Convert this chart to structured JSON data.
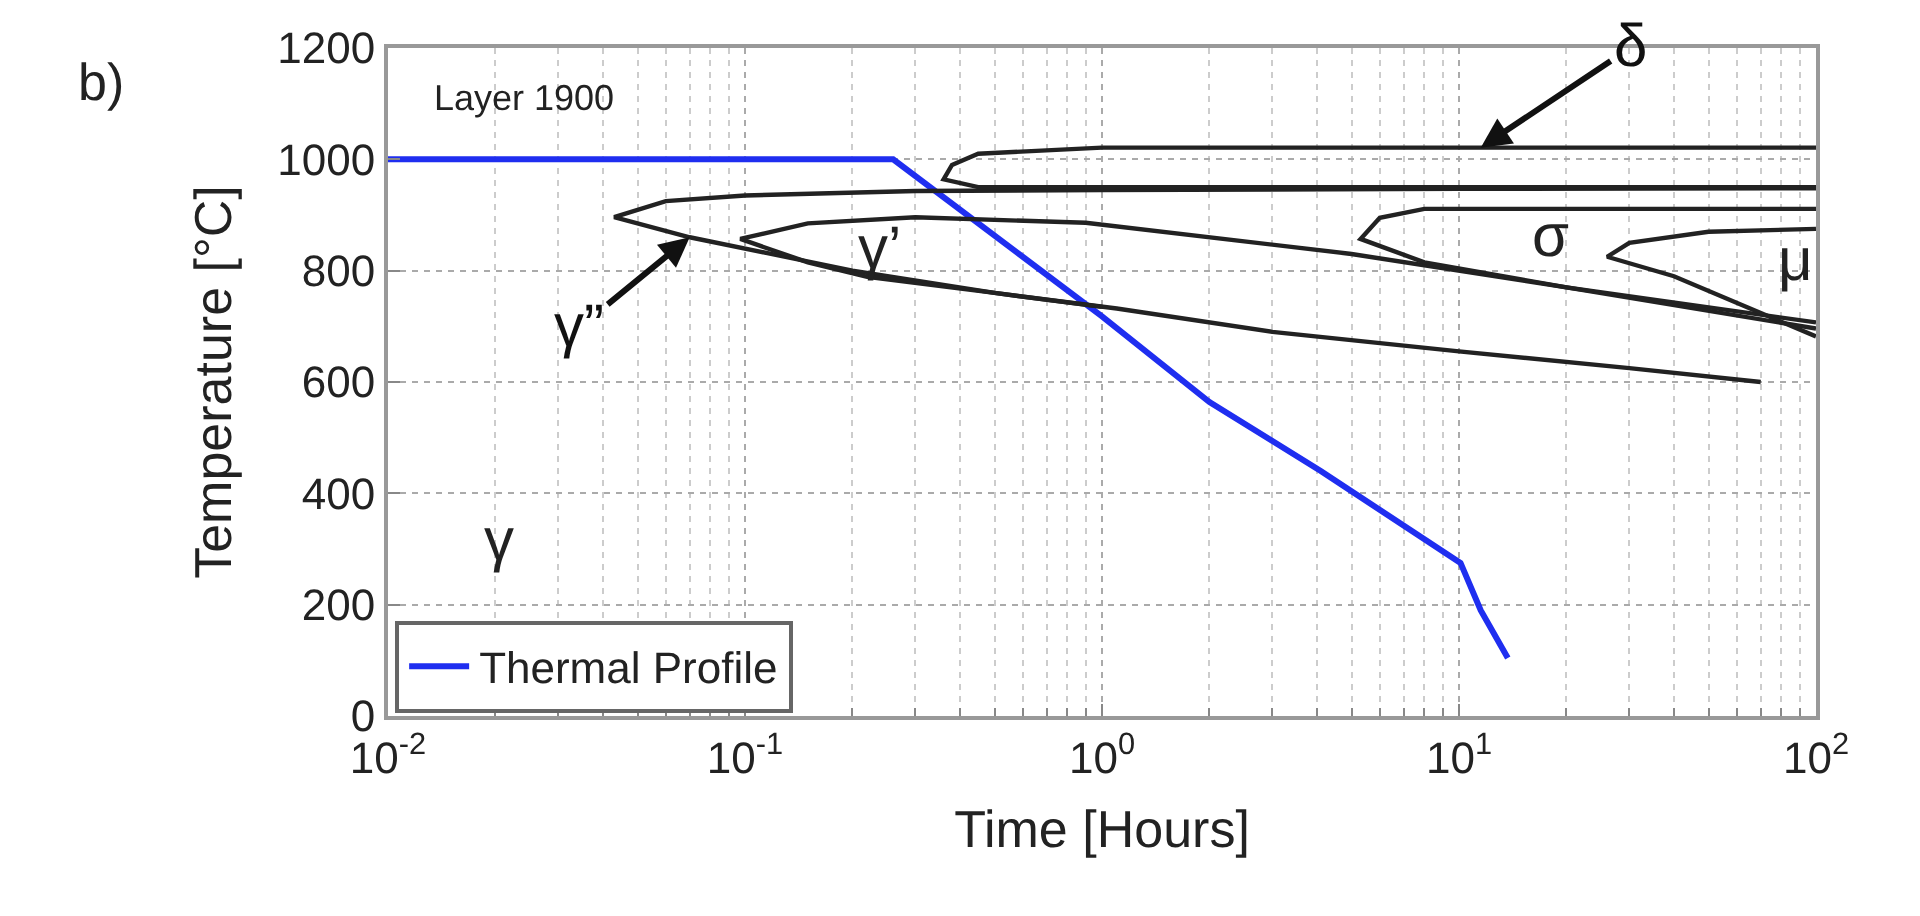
{
  "chart_data": {
    "type": "line",
    "xlabel": "Time [Hours]",
    "ylabel": "Temperature [°C]",
    "log": "x",
    "xlim": [
      0.01,
      100
    ],
    "ylim": [
      0,
      1200
    ],
    "xticks": [
      {
        "value": 0.01,
        "label": "10$^{-2}$"
      },
      {
        "value": 0.1,
        "label": "10$^{-1}$"
      },
      {
        "value": 1,
        "label": "10$^{0}$"
      },
      {
        "value": 10,
        "label": "10$^{1}$"
      },
      {
        "value": 100,
        "label": "10$^{2}$"
      }
    ],
    "yticks": [
      0,
      200,
      400,
      600,
      800,
      1000,
      1200
    ],
    "grid": true,
    "legend": "bottom left",
    "marker": "none",
    "line_style": "solid",
    "series": [
      {
        "name": "Thermal Profile",
        "color": "#1f2ef0",
        "x": [
          0.01,
          0.1,
          0.26,
          1,
          2,
          4.1,
          10.1,
          11.5,
          13.7
        ],
        "values": [
          1000,
          1000,
          1000,
          718,
          564,
          440,
          275,
          190,
          104
        ]
      },
      {
        "color": "#222222",
        "x": [
          100,
          10,
          1,
          0.3,
          0.1,
          0.06,
          0.043,
          0.07,
          0.2,
          0.5,
          1.1,
          3,
          10,
          30,
          70
        ],
        "values": [
          948,
          947,
          945,
          943,
          935,
          925,
          896,
          860,
          800,
          760,
          732,
          690,
          655,
          625,
          600
        ]
      },
      {
        "color": "#222222",
        "x": [
          100,
          20,
          5,
          0.9,
          0.3,
          0.15,
          0.097,
          0.15,
          0.22,
          0.5,
          1
        ],
        "values": [
          707,
          770,
          830,
          886,
          896,
          885,
          857,
          815,
          789,
          760,
          735
        ]
      },
      {
        "color": "#222222",
        "x": [
          100,
          20,
          8,
          6,
          5.3,
          8,
          20,
          100
        ],
        "values": [
          911,
          911,
          911,
          895,
          857,
          815,
          770,
          696
        ]
      },
      {
        "color": "#222222",
        "x": [
          100,
          50,
          30,
          26,
          40,
          100
        ],
        "values": [
          875,
          870,
          850,
          825,
          790,
          682
        ]
      },
      {
        "color": "#222222",
        "x": [
          100,
          10,
          1,
          0.45,
          0.38,
          0.36,
          0.45,
          1,
          10,
          100
        ],
        "values": [
          1021,
          1021,
          1021,
          1010,
          990,
          964,
          950,
          950,
          950,
          950
        ]
      }
    ],
    "annotations": [
      "b)",
      "Layer 1900",
      "γ",
      {
        "text": "γ”",
        "x": 0.07,
        "y": 860
      },
      "γ’",
      "σ",
      "μ",
      {
        "text": "δ",
        "x": 11.5,
        "y": 1021
      }
    ]
  }
}
